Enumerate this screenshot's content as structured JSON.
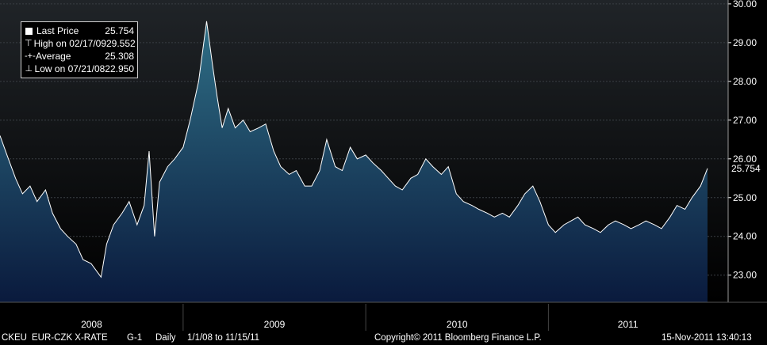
{
  "chart_data": {
    "type": "area",
    "ylim": [
      22.3,
      30.1
    ],
    "xlim": [
      "2008-01-01",
      "2011-11-15"
    ],
    "y_ticks": [
      "30.00",
      "29.00",
      "28.00",
      "27.00",
      "26.00",
      "25.00",
      "24.00",
      "23.00"
    ],
    "x_ticks": [
      "2008",
      "2009",
      "2010",
      "2011"
    ],
    "grid": true,
    "legend_placement": "top-left",
    "colors": {
      "line": "#ffffff",
      "fill_top": "#2f6f86",
      "fill_bottom": "#0a1a3d",
      "background_top": "#202428",
      "background_bottom": "#000000",
      "grid": "#3a3f44"
    },
    "series": [
      {
        "name": "Last Price",
        "points": [
          [
            "2008-01-01",
            26.6
          ],
          [
            "2008-01-15",
            26.1
          ],
          [
            "2008-02-01",
            25.5
          ],
          [
            "2008-02-15",
            25.1
          ],
          [
            "2008-03-01",
            25.3
          ],
          [
            "2008-03-15",
            24.9
          ],
          [
            "2008-04-01",
            25.2
          ],
          [
            "2008-04-15",
            24.6
          ],
          [
            "2008-05-01",
            24.2
          ],
          [
            "2008-05-15",
            24.0
          ],
          [
            "2008-06-01",
            23.8
          ],
          [
            "2008-06-15",
            23.4
          ],
          [
            "2008-07-01",
            23.3
          ],
          [
            "2008-07-21",
            22.95
          ],
          [
            "2008-08-01",
            23.8
          ],
          [
            "2008-08-15",
            24.3
          ],
          [
            "2008-09-01",
            24.6
          ],
          [
            "2008-09-15",
            24.9
          ],
          [
            "2008-10-01",
            24.3
          ],
          [
            "2008-10-15",
            24.8
          ],
          [
            "2008-10-25",
            26.2
          ],
          [
            "2008-11-05",
            24.0
          ],
          [
            "2008-11-15",
            25.4
          ],
          [
            "2008-12-01",
            25.8
          ],
          [
            "2008-12-15",
            26.0
          ],
          [
            "2009-01-01",
            26.3
          ],
          [
            "2009-01-15",
            27.0
          ],
          [
            "2009-02-01",
            28.0
          ],
          [
            "2009-02-17",
            29.552
          ],
          [
            "2009-03-01",
            28.4
          ],
          [
            "2009-03-10",
            27.6
          ],
          [
            "2009-03-20",
            26.8
          ],
          [
            "2009-04-01",
            27.3
          ],
          [
            "2009-04-15",
            26.8
          ],
          [
            "2009-05-01",
            27.0
          ],
          [
            "2009-05-15",
            26.7
          ],
          [
            "2009-06-01",
            26.8
          ],
          [
            "2009-06-15",
            26.9
          ],
          [
            "2009-07-01",
            26.2
          ],
          [
            "2009-07-15",
            25.8
          ],
          [
            "2009-08-01",
            25.6
          ],
          [
            "2009-08-15",
            25.7
          ],
          [
            "2009-09-01",
            25.3
          ],
          [
            "2009-09-15",
            25.3
          ],
          [
            "2009-10-01",
            25.7
          ],
          [
            "2009-10-15",
            26.5
          ],
          [
            "2009-11-01",
            25.8
          ],
          [
            "2009-11-15",
            25.7
          ],
          [
            "2009-12-01",
            26.3
          ],
          [
            "2009-12-15",
            26.0
          ],
          [
            "2010-01-01",
            26.1
          ],
          [
            "2010-01-15",
            25.9
          ],
          [
            "2010-02-01",
            25.7
          ],
          [
            "2010-02-15",
            25.5
          ],
          [
            "2010-03-01",
            25.3
          ],
          [
            "2010-03-15",
            25.2
          ],
          [
            "2010-04-01",
            25.5
          ],
          [
            "2010-04-15",
            25.6
          ],
          [
            "2010-05-01",
            26.0
          ],
          [
            "2010-05-15",
            25.8
          ],
          [
            "2010-06-01",
            25.6
          ],
          [
            "2010-06-15",
            25.8
          ],
          [
            "2010-07-01",
            25.1
          ],
          [
            "2010-07-15",
            24.9
          ],
          [
            "2010-08-01",
            24.8
          ],
          [
            "2010-08-15",
            24.7
          ],
          [
            "2010-09-01",
            24.6
          ],
          [
            "2010-09-15",
            24.5
          ],
          [
            "2010-10-01",
            24.6
          ],
          [
            "2010-10-15",
            24.5
          ],
          [
            "2010-11-01",
            24.8
          ],
          [
            "2010-11-15",
            25.1
          ],
          [
            "2010-12-01",
            25.3
          ],
          [
            "2010-12-15",
            24.9
          ],
          [
            "2011-01-01",
            24.3
          ],
          [
            "2011-01-15",
            24.1
          ],
          [
            "2011-02-01",
            24.3
          ],
          [
            "2011-02-15",
            24.4
          ],
          [
            "2011-03-01",
            24.5
          ],
          [
            "2011-03-15",
            24.3
          ],
          [
            "2011-04-01",
            24.2
          ],
          [
            "2011-04-15",
            24.1
          ],
          [
            "2011-05-01",
            24.3
          ],
          [
            "2011-05-15",
            24.4
          ],
          [
            "2011-06-01",
            24.3
          ],
          [
            "2011-06-15",
            24.2
          ],
          [
            "2011-07-01",
            24.3
          ],
          [
            "2011-07-15",
            24.4
          ],
          [
            "2011-08-01",
            24.3
          ],
          [
            "2011-08-15",
            24.2
          ],
          [
            "2011-09-01",
            24.5
          ],
          [
            "2011-09-15",
            24.8
          ],
          [
            "2011-10-01",
            24.7
          ],
          [
            "2011-10-15",
            25.0
          ],
          [
            "2011-11-01",
            25.3
          ],
          [
            "2011-11-15",
            25.754
          ]
        ]
      }
    ],
    "legend": [
      {
        "icon": "square",
        "label": "Last Price",
        "value": "25.754"
      },
      {
        "icon": "high",
        "label": "High on 02/17/09",
        "value": "29.552"
      },
      {
        "icon": "average",
        "label": "Average",
        "value": "25.308"
      },
      {
        "icon": "low",
        "label": "Low on 07/21/08",
        "value": "22.950"
      }
    ],
    "last_value_tag": "25.754"
  },
  "footer": {
    "ticker": "CKEU",
    "title": "EUR-CZK X-RATE",
    "graph_id": "G-1",
    "frequency": "Daily",
    "range": "1/1/08 to 11/15/11",
    "copyright": "Copyright© 2011 Bloomberg Finance L.P.",
    "timestamp": "15-Nov-2011 13:40:13"
  }
}
